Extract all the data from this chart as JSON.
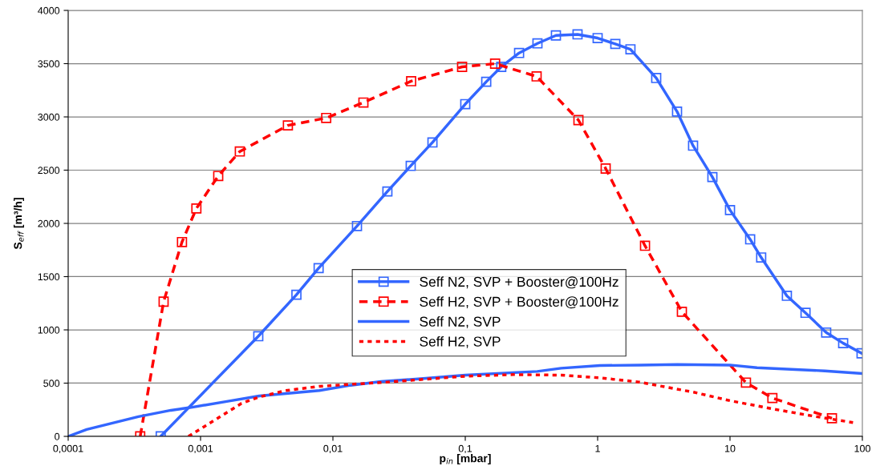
{
  "chart_data": {
    "type": "line",
    "xlabel": "p$_{in}$ [mbar]",
    "ylabel": "S$_{eff}$ [m³/h]",
    "log": "x",
    "grid": "y",
    "legend": "center",
    "xlim": [
      0.0001,
      100
    ],
    "xticks": [
      {
        "value": 0.0001,
        "label": "0,0001"
      },
      {
        "value": 0.001,
        "label": "0,001"
      },
      {
        "value": 0.01,
        "label": "0,01"
      },
      {
        "value": 0.1,
        "label": "0,1"
      },
      {
        "value": 1,
        "label": "1"
      },
      {
        "value": 10,
        "label": "10"
      },
      {
        "value": 100,
        "label": "100"
      }
    ],
    "ylim": [
      0,
      4000
    ],
    "yticks": [
      0,
      500,
      1000,
      1500,
      2000,
      2500,
      3000,
      3500,
      4000
    ],
    "series": [
      {
        "name": "Seff N2, SVP + Booster@100Hz",
        "color": "#3366ff",
        "marker": "square",
        "line_style": "solid",
        "x": [
          0.0005,
          0.00273,
          0.0053,
          0.0078,
          0.0152,
          0.0258,
          0.0387,
          0.0565,
          0.1,
          0.144,
          0.187,
          0.255,
          0.351,
          0.484,
          0.705,
          1.0,
          1.36,
          1.77,
          2.77,
          3.98,
          5.26,
          7.36,
          10,
          14.2,
          17.2,
          26.9,
          37.2,
          53.3,
          71.6,
          98.6
        ],
        "values": [
          0,
          940,
          1330,
          1580,
          1975,
          2300,
          2540,
          2760,
          3120,
          3330,
          3470,
          3600,
          3690,
          3765,
          3775,
          3740,
          3685,
          3635,
          3365,
          3050,
          2730,
          2435,
          2125,
          1850,
          1680,
          1320,
          1160,
          975,
          875,
          780
        ]
      },
      {
        "name": "Seff H2, SVP + Booster@100Hz",
        "color": "#ff0000",
        "marker": "square",
        "line_style": "dashed",
        "x": [
          0.00035,
          0.000526,
          0.000724,
          0.00093,
          0.00136,
          0.00198,
          0.00457,
          0.0089,
          0.017,
          0.039,
          0.0946,
          0.168,
          0.346,
          0.716,
          1.15,
          2.28,
          4.33,
          13.2,
          20.9,
          58.9
        ],
        "values": [
          0,
          1265,
          1825,
          2140,
          2445,
          2675,
          2920,
          2990,
          3135,
          3335,
          3470,
          3500,
          3380,
          2970,
          2515,
          1790,
          1170,
          505,
          360,
          170
        ]
      },
      {
        "name": "Seff N2, SVP",
        "color": "#3366ff",
        "marker": "none",
        "line_style": "solid",
        "x": [
          0.0001,
          0.000138,
          0.000339,
          0.000597,
          0.00083,
          0.00161,
          0.00278,
          0.00789,
          0.0136,
          0.0231,
          0.0503,
          0.1,
          0.35,
          0.53,
          1.04,
          2.1,
          4,
          10,
          16,
          52,
          100
        ],
        "values": [
          0,
          65,
          185,
          245,
          270,
          330,
          380,
          430,
          480,
          515,
          545,
          575,
          610,
          640,
          665,
          670,
          675,
          670,
          645,
          615,
          590
        ]
      },
      {
        "name": "Seff H2, SVP",
        "color": "#ff0000",
        "marker": "none",
        "line_style": "dotted",
        "x": [
          0.00081,
          0.00103,
          0.00204,
          0.00278,
          0.0044,
          0.0079,
          0.0163,
          0.023,
          0.1,
          0.23,
          0.53,
          1.04,
          2.06,
          5.3,
          10,
          21.7,
          45,
          85
        ],
        "values": [
          0,
          80,
          310,
          370,
          430,
          470,
          495,
          505,
          565,
          580,
          575,
          550,
          510,
          415,
          335,
          255,
          185,
          130
        ]
      }
    ]
  }
}
